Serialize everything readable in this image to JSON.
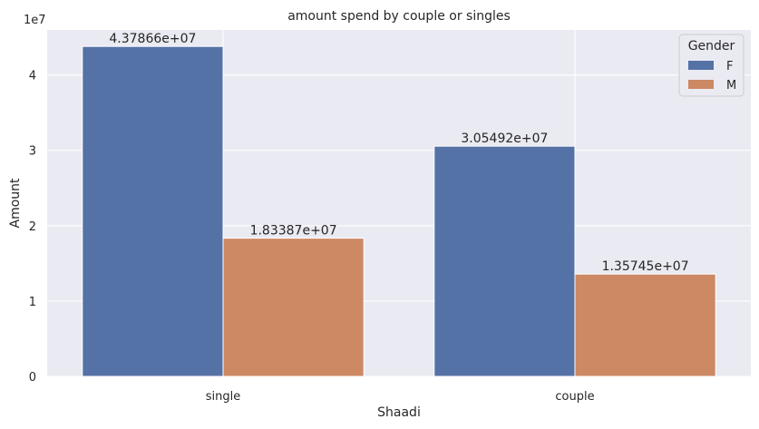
{
  "chart_data": {
    "type": "bar",
    "title": "amount spend by couple or singles",
    "xlabel": "Shaadi",
    "ylabel": "Amount",
    "y_offset_text": "1e7",
    "categories": [
      "single",
      "couple"
    ],
    "series": [
      {
        "name": "F",
        "values": [
          43786600,
          30549200
        ],
        "color": "#5572a6"
      },
      {
        "name": "M",
        "values": [
          18338700,
          13574500
        ],
        "color": "#cc8963"
      }
    ],
    "data_labels": [
      [
        "4.37866e+07",
        "3.05492e+07"
      ],
      [
        "1.83387e+07",
        "1.35745e+07"
      ]
    ],
    "yticks": [
      0,
      1,
      2,
      3,
      4
    ],
    "ylim": [
      0,
      45975930
    ],
    "legend": {
      "title": "Gender",
      "position": "top-right"
    },
    "grid": true,
    "background": "#eaeaf2"
  }
}
